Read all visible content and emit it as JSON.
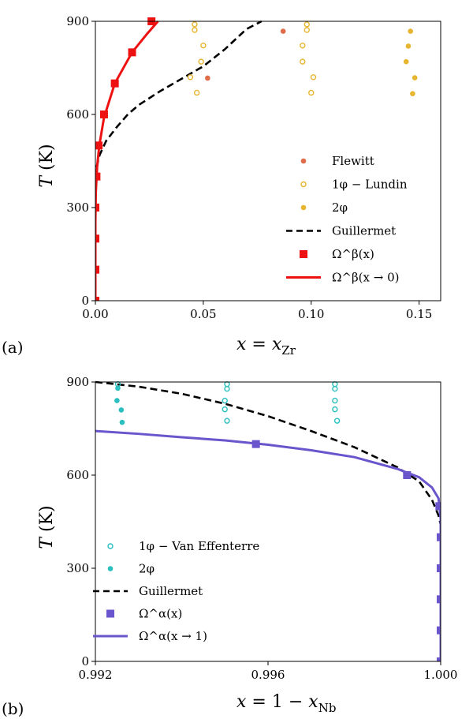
{
  "chart_data": [
    {
      "panel_label": "(a)",
      "type": "scatter",
      "xlabel": "x = x_Zr",
      "ylabel": "T (K)",
      "xlim": [
        0,
        0.16
      ],
      "ylim": [
        0,
        900
      ],
      "xticks": [
        "0.00",
        "0.05",
        "0.10",
        "0.15"
      ],
      "yticks": [
        "0",
        "300",
        "600",
        "900"
      ],
      "legend_position": "lower-right",
      "series": [
        {
          "name": "Flewitt",
          "kind": "filled-circle",
          "color": "#e06c4a",
          "points": [
            [
              0.052,
              717
            ],
            [
              0.087,
              868
            ]
          ]
        },
        {
          "name": "1φ − Lundin",
          "kind": "open-circle",
          "color": "#e8b530",
          "points": [
            [
              0.046,
              890
            ],
            [
              0.046,
              872
            ],
            [
              0.05,
              822
            ],
            [
              0.049,
              770
            ],
            [
              0.044,
              720
            ],
            [
              0.047,
              670
            ],
            [
              0.098,
              890
            ],
            [
              0.098,
              872
            ],
            [
              0.096,
              822
            ],
            [
              0.096,
              770
            ],
            [
              0.101,
              720
            ],
            [
              0.1,
              670
            ]
          ]
        },
        {
          "name": "2φ",
          "kind": "filled-circle",
          "color": "#e8b530",
          "points": [
            [
              0.146,
              868
            ],
            [
              0.145,
              820
            ],
            [
              0.144,
              770
            ],
            [
              0.148,
              718
            ],
            [
              0.147,
              667
            ]
          ]
        },
        {
          "name": "Guillermet",
          "kind": "dashed-line",
          "color": "#000000",
          "points": [
            [
              0.0005,
              430
            ],
            [
              0.002,
              470
            ],
            [
              0.005,
              515
            ],
            [
              0.01,
              560
            ],
            [
              0.015,
              600
            ],
            [
              0.02,
              630
            ],
            [
              0.03,
              675
            ],
            [
              0.04,
              715
            ],
            [
              0.05,
              755
            ],
            [
              0.06,
              810
            ],
            [
              0.07,
              875
            ],
            [
              0.077,
              900
            ]
          ]
        },
        {
          "name": "Ω^β(x)",
          "kind": "square",
          "color": "#ee1111",
          "points": [
            [
              0.0,
              0
            ],
            [
              0.0,
              100
            ],
            [
              0.0,
              200
            ],
            [
              0.0,
              300
            ],
            [
              0.0005,
              400
            ],
            [
              0.0015,
              500
            ],
            [
              0.004,
              600
            ],
            [
              0.009,
              700
            ],
            [
              0.017,
              800
            ],
            [
              0.026,
              900
            ]
          ]
        },
        {
          "name": "Ω^β(x → 0)",
          "kind": "solid-line",
          "color": "#ee1111",
          "points": [
            [
              0.0,
              0
            ],
            [
              0.0,
              250
            ],
            [
              0.0002,
              350
            ],
            [
              0.0008,
              430
            ],
            [
              0.0018,
              500
            ],
            [
              0.004,
              590
            ],
            [
              0.009,
              700
            ],
            [
              0.017,
              800
            ],
            [
              0.024,
              860
            ],
            [
              0.029,
              900
            ]
          ]
        }
      ]
    },
    {
      "panel_label": "(b)",
      "type": "scatter",
      "xlabel": "x = 1 − x_Nb",
      "ylabel": "T (K)",
      "xlim": [
        0.992,
        1.0
      ],
      "ylim": [
        0,
        900
      ],
      "xticks": [
        "0.992",
        "0.996",
        "1.000"
      ],
      "yticks": [
        "0",
        "300",
        "600",
        "900"
      ],
      "legend_position": "lower-left",
      "series": [
        {
          "name": "1φ − Van Effenterre",
          "kind": "open-circle",
          "color": "#2bbfbf",
          "points": [
            [
              0.99252,
              893
            ],
            [
              0.99505,
              893
            ],
            [
              0.99505,
              878
            ],
            [
              0.995,
              840
            ],
            [
              0.995,
              812
            ],
            [
              0.99505,
              775
            ],
            [
              0.99755,
              893
            ],
            [
              0.99755,
              878
            ],
            [
              0.99755,
              840
            ],
            [
              0.99755,
              812
            ],
            [
              0.9976,
              775
            ]
          ]
        },
        {
          "name": "2φ",
          "kind": "filled-circle",
          "color": "#2bbfbf",
          "points": [
            [
              0.99252,
              880
            ],
            [
              0.9925,
              840
            ],
            [
              0.9926,
              810
            ],
            [
              0.99262,
              770
            ]
          ]
        },
        {
          "name": "Guillermet",
          "kind": "dashed-line",
          "color": "#000000",
          "points": [
            [
              0.992,
              900
            ],
            [
              0.993,
              885
            ],
            [
              0.994,
              862
            ],
            [
              0.995,
              830
            ],
            [
              0.996,
              790
            ],
            [
              0.997,
              742
            ],
            [
              0.998,
              690
            ],
            [
              0.999,
              625
            ],
            [
              0.9995,
              580
            ],
            [
              0.9998,
              520
            ],
            [
              0.99995,
              470
            ],
            [
              1.0,
              440
            ]
          ]
        },
        {
          "name": "Ω^α(x)",
          "kind": "square",
          "color": "#6a55cc",
          "points": [
            [
              0.99572,
              700
            ],
            [
              0.99922,
              600
            ],
            [
              0.99997,
              500
            ],
            [
              1.0,
              400
            ],
            [
              1.0,
              300
            ],
            [
              1.0,
              200
            ],
            [
              1.0,
              100
            ],
            [
              1.0,
              0
            ]
          ]
        },
        {
          "name": "Ω^α(x → 1)",
          "kind": "solid-line",
          "color": "#6a55cc",
          "points": [
            [
              0.992,
              742
            ],
            [
              0.993,
              733
            ],
            [
              0.994,
              722
            ],
            [
              0.995,
              712
            ],
            [
              0.996,
              698
            ],
            [
              0.997,
              680
            ],
            [
              0.998,
              658
            ],
            [
              0.999,
              620
            ],
            [
              0.9995,
              593
            ],
            [
              0.9998,
              560
            ],
            [
              0.99995,
              525
            ],
            [
              1.0,
              460
            ],
            [
              1.0,
              0
            ]
          ]
        }
      ]
    }
  ],
  "icons": {
    "filled-circle": "marker-filled-circle-icon",
    "open-circle": "marker-open-circle-icon",
    "square": "marker-square-icon",
    "dashed-line": "legend-dashed-line-icon",
    "solid-line": "legend-solid-line-icon"
  }
}
